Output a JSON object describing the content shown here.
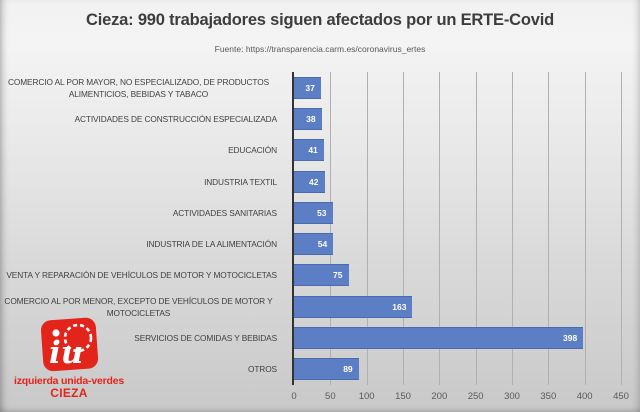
{
  "header": {
    "title": "Cieza: 990 trabajadores siguen afectados por un ERTE-Covid",
    "source": "Fuente: https://transparencia.carm.es/coronavirus_ertes"
  },
  "chart_data": {
    "type": "bar",
    "orientation": "horizontal",
    "title": "Cieza: 990 trabajadores siguen afectados por un ERTE-Covid",
    "categories": [
      "COMERCIO AL POR MAYOR, NO ESPECIALIZADO, DE PRODUCTOS ALIMENTICIOS, BEBIDAS Y TABACO",
      "ACTIVIDADES DE CONSTRUCCIÓN ESPECIALIZADA",
      "EDUCACIÓN",
      "INDUSTRIA TEXTIL",
      "ACTIVIDADES SANITARIAS",
      "INDUSTRIA DE LA ALIMENTACIÓN",
      "VENTA Y REPARACIÓN DE VEHÍCULOS DE MOTOR Y MOTOCICLETAS",
      "COMERCIO AL POR MENOR, EXCEPTO DE VEHÍCULOS DE MOTOR Y MOTOCICLETAS",
      "SERVICIOS DE COMIDAS Y BEBIDAS",
      "OTROS"
    ],
    "values": [
      37,
      38,
      41,
      42,
      53,
      54,
      75,
      163,
      398,
      89
    ],
    "xlim": [
      0,
      450
    ],
    "xticks": [
      0,
      50,
      100,
      150,
      200,
      250,
      300,
      350,
      400,
      450
    ],
    "grid": true,
    "legend_position": "none",
    "bar_color": "#5b7ec4",
    "value_label_color": "#ffffff",
    "axis_label_color": "#595959"
  },
  "logo": {
    "acronym": "iu",
    "line1": "izquierda unida-verdes",
    "line2": "CIEZA",
    "brand_color": "#e3241b"
  }
}
